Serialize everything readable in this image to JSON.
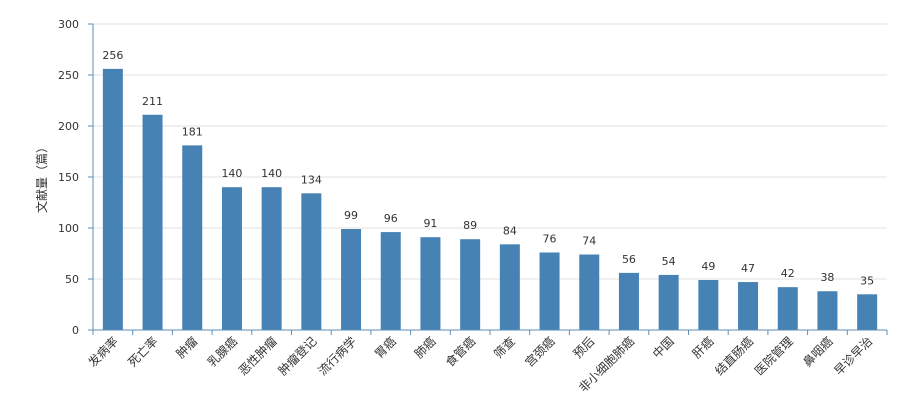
{
  "chart_data": {
    "type": "bar",
    "ylabel": "文献量（篇）",
    "ylim": [
      0,
      300
    ],
    "yticks": [
      0,
      50,
      100,
      150,
      200,
      250,
      300
    ],
    "grid": true,
    "bar_color": "#4682b4",
    "categories": [
      "发病率",
      "死亡率",
      "肿瘤",
      "乳腺癌",
      "恶性肿瘤",
      "肿瘤登记",
      "流行病学",
      "胃癌",
      "肺癌",
      "食管癌",
      "筛查",
      "宫颈癌",
      "预后",
      "非小细胞肺癌",
      "中国",
      "肝癌",
      "结直肠癌",
      "医院管理",
      "鼻咽癌",
      "早诊早治"
    ],
    "values": [
      256,
      211,
      181,
      140,
      140,
      134,
      99,
      96,
      91,
      89,
      84,
      76,
      74,
      56,
      54,
      49,
      47,
      42,
      38,
      35
    ]
  }
}
